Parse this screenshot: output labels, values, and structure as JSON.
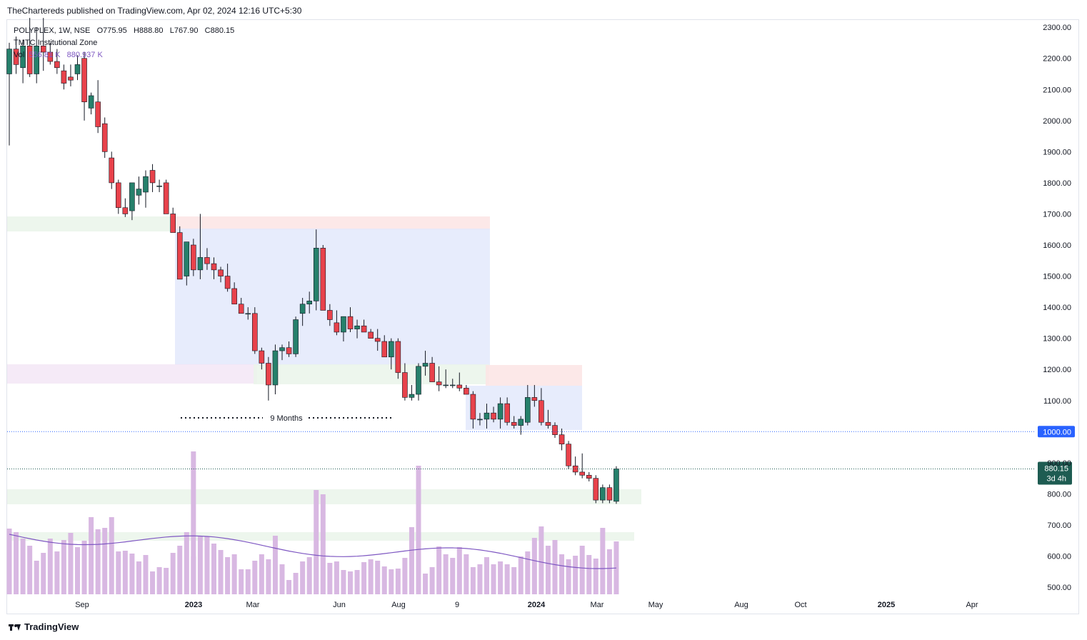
{
  "header": {
    "publisher_line": "TheChartereds published on TradingView.com, Apr 02, 2024 12:16 UTC+5:30"
  },
  "legend": {
    "symbol": "POLYPLEX, 1W, NSE",
    "open_label": "O775.95",
    "high_label": "H888.80",
    "low_label": "L767.90",
    "close_label": "C880.15",
    "indicator": "TMTC Institutional Zone",
    "vol_label": "Vol",
    "vol_value1": "556.81 K",
    "vol_value2": "880.937 K"
  },
  "annotation": {
    "text": "9 Months"
  },
  "price_tags": {
    "level": "1000.00",
    "last_price": "880.15",
    "countdown": "3d 4h"
  },
  "footer": {
    "brand": "TradingView"
  },
  "colors": {
    "up": "#26806b",
    "down": "#e8424b",
    "wick": "#131722",
    "volume": "#d8b8e2",
    "vol_ma": "#7e57c2",
    "zone_blue": "#e3e9fc",
    "zone_green": "#eaf4ea",
    "zone_red": "#fce4e4",
    "zone_purple": "#f3e6f6",
    "price_tag": "#1e5c52",
    "level_tag": "#2962ff"
  },
  "chart_data": {
    "type": "candlestick",
    "symbol": "POLYPLEX",
    "interval": "1W",
    "exchange": "NSE",
    "ylim": [
      460,
      2330
    ],
    "y_ticks": [
      "2300.00",
      "2200.00",
      "2100.00",
      "2000.00",
      "1900.00",
      "1800.00",
      "1700.00",
      "1600.00",
      "1500.00",
      "1400.00",
      "1300.00",
      "1200.00",
      "1100.00",
      "1000.00",
      "900.00",
      "800.00",
      "700.00",
      "600.00",
      "500.00"
    ],
    "x_tick_labels": [
      "Sep",
      "2023",
      "Mar",
      "Jun",
      "Aug",
      "9",
      "2024",
      "Mar",
      "May",
      "Aug",
      "Oct",
      "2025",
      "Apr"
    ],
    "horizontal_level": 1000,
    "last_close": 880.15,
    "ohlc_approx": [
      [
        2150,
        2250,
        1920,
        2230
      ],
      [
        2230,
        2270,
        2150,
        2180
      ],
      [
        2170,
        2260,
        2120,
        2240
      ],
      [
        2240,
        2330,
        2140,
        2150
      ],
      [
        2150,
        2300,
        2120,
        2240
      ],
      [
        2240,
        2330,
        2160,
        2220
      ],
      [
        2220,
        2250,
        2180,
        2190
      ],
      [
        2190,
        2230,
        2150,
        2170
      ],
      [
        2160,
        2180,
        2100,
        2120
      ],
      [
        2140,
        2180,
        2110,
        2130
      ],
      [
        2150,
        2210,
        2130,
        2180
      ],
      [
        2200,
        2220,
        2000,
        2060
      ],
      [
        2040,
        2090,
        2020,
        2080
      ],
      [
        2060,
        2130,
        1960,
        1980
      ],
      [
        1990,
        2010,
        1880,
        1900
      ],
      [
        1880,
        1900,
        1780,
        1800
      ],
      [
        1800,
        1810,
        1700,
        1720
      ],
      [
        1720,
        1750,
        1690,
        1700
      ],
      [
        1710,
        1800,
        1680,
        1800
      ],
      [
        1760,
        1820,
        1730,
        1780
      ],
      [
        1770,
        1840,
        1720,
        1820
      ],
      [
        1840,
        1860,
        1770,
        1800
      ],
      [
        1790,
        1810,
        1770,
        1790
      ],
      [
        1800,
        1810,
        1710,
        1700
      ],
      [
        1700,
        1720,
        1650,
        1640
      ],
      [
        1640,
        1660,
        1600,
        1490
      ],
      [
        1500,
        1610,
        1470,
        1610
      ],
      [
        1600,
        1620,
        1500,
        1520
      ],
      [
        1520,
        1700,
        1490,
        1560
      ],
      [
        1560,
        1590,
        1520,
        1540
      ],
      [
        1540,
        1560,
        1490,
        1520
      ],
      [
        1520,
        1530,
        1480,
        1500
      ],
      [
        1500,
        1540,
        1450,
        1460
      ],
      [
        1460,
        1480,
        1410,
        1410
      ],
      [
        1410,
        1430,
        1380,
        1380
      ],
      [
        1380,
        1400,
        1360,
        1380
      ],
      [
        1380,
        1400,
        1250,
        1260
      ],
      [
        1260,
        1270,
        1200,
        1220
      ],
      [
        1220,
        1240,
        1100,
        1150
      ],
      [
        1150,
        1280,
        1120,
        1260
      ],
      [
        1260,
        1280,
        1230,
        1270
      ],
      [
        1270,
        1290,
        1240,
        1250
      ],
      [
        1250,
        1370,
        1240,
        1360
      ],
      [
        1380,
        1430,
        1340,
        1410
      ],
      [
        1410,
        1450,
        1380,
        1420
      ],
      [
        1420,
        1650,
        1390,
        1590
      ],
      [
        1590,
        1600,
        1390,
        1390
      ],
      [
        1390,
        1410,
        1340,
        1360
      ],
      [
        1350,
        1390,
        1310,
        1320
      ],
      [
        1320,
        1370,
        1290,
        1370
      ],
      [
        1370,
        1400,
        1320,
        1330
      ],
      [
        1330,
        1360,
        1300,
        1340
      ],
      [
        1340,
        1360,
        1320,
        1320
      ],
      [
        1320,
        1330,
        1300,
        1300
      ],
      [
        1300,
        1330,
        1260,
        1290
      ],
      [
        1290,
        1310,
        1240,
        1240
      ],
      [
        1240,
        1300,
        1200,
        1290
      ],
      [
        1290,
        1300,
        1170,
        1190
      ],
      [
        1190,
        1220,
        1100,
        1110
      ],
      [
        1110,
        1150,
        1100,
        1120
      ],
      [
        1120,
        1220,
        1100,
        1210
      ],
      [
        1210,
        1260,
        1180,
        1220
      ],
      [
        1220,
        1240,
        1160,
        1160
      ],
      [
        1160,
        1210,
        1130,
        1150
      ],
      [
        1150,
        1200,
        1140,
        1150
      ],
      [
        1150,
        1170,
        1140,
        1150
      ],
      [
        1150,
        1190,
        1130,
        1140
      ],
      [
        1140,
        1150,
        1120,
        1120
      ],
      [
        1120,
        1130,
        1010,
        1040
      ],
      [
        1040,
        1060,
        1020,
        1040
      ],
      [
        1040,
        1090,
        1010,
        1060
      ],
      [
        1060,
        1080,
        1030,
        1040
      ],
      [
        1040,
        1110,
        1010,
        1090
      ],
      [
        1090,
        1110,
        1020,
        1030
      ],
      [
        1030,
        1050,
        1010,
        1020
      ],
      [
        1020,
        1050,
        990,
        1040
      ],
      [
        1030,
        1150,
        1020,
        1110
      ],
      [
        1110,
        1150,
        1080,
        1100
      ],
      [
        1100,
        1140,
        1020,
        1030
      ],
      [
        1030,
        1070,
        1010,
        1020
      ],
      [
        1020,
        1030,
        980,
        990
      ],
      [
        990,
        1010,
        940,
        960
      ],
      [
        960,
        970,
        880,
        890
      ],
      [
        890,
        920,
        860,
        870
      ],
      [
        870,
        930,
        850,
        860
      ],
      [
        860,
        870,
        840,
        850
      ],
      [
        850,
        860,
        770,
        780
      ],
      [
        780,
        830,
        770,
        820
      ],
      [
        820,
        830,
        770,
        780
      ],
      [
        775.95,
        888.8,
        767.9,
        880.15
      ]
    ],
    "zones_description": [
      "Institutional zones marked as shaded rectangles"
    ]
  }
}
